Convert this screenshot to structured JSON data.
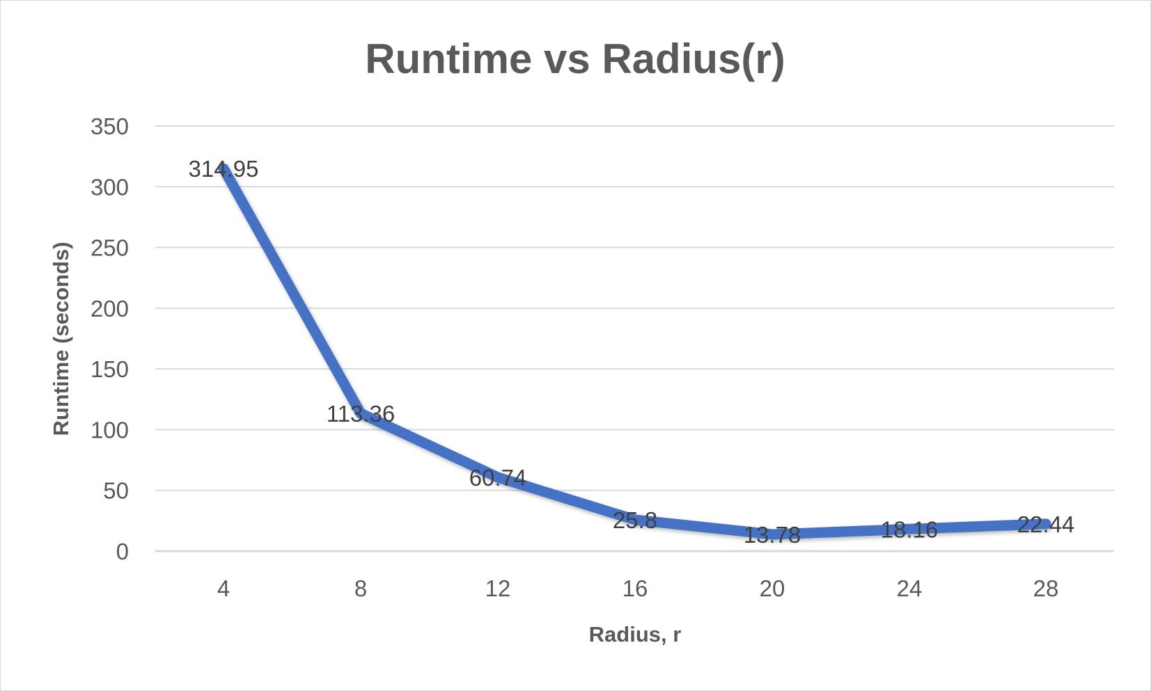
{
  "chart_data": {
    "type": "line",
    "title": "Runtime vs Radius(r)",
    "xlabel": "Radius, r",
    "ylabel": "Runtime (seconds)",
    "categories": [
      "4",
      "8",
      "12",
      "16",
      "20",
      "24",
      "28"
    ],
    "series": [
      {
        "values": [
          314.95,
          113.36,
          60.74,
          25.8,
          13.78,
          18.16,
          22.44
        ],
        "color": "#4472c4",
        "data_labels": [
          "314.95",
          "113.36",
          "60.74",
          "25.8",
          "13.78",
          "18.16",
          "22.44"
        ]
      }
    ],
    "ylim": [
      0,
      350
    ],
    "yticks": [
      0,
      50,
      100,
      150,
      200,
      250,
      300,
      350
    ],
    "grid": true,
    "legend": "none"
  }
}
